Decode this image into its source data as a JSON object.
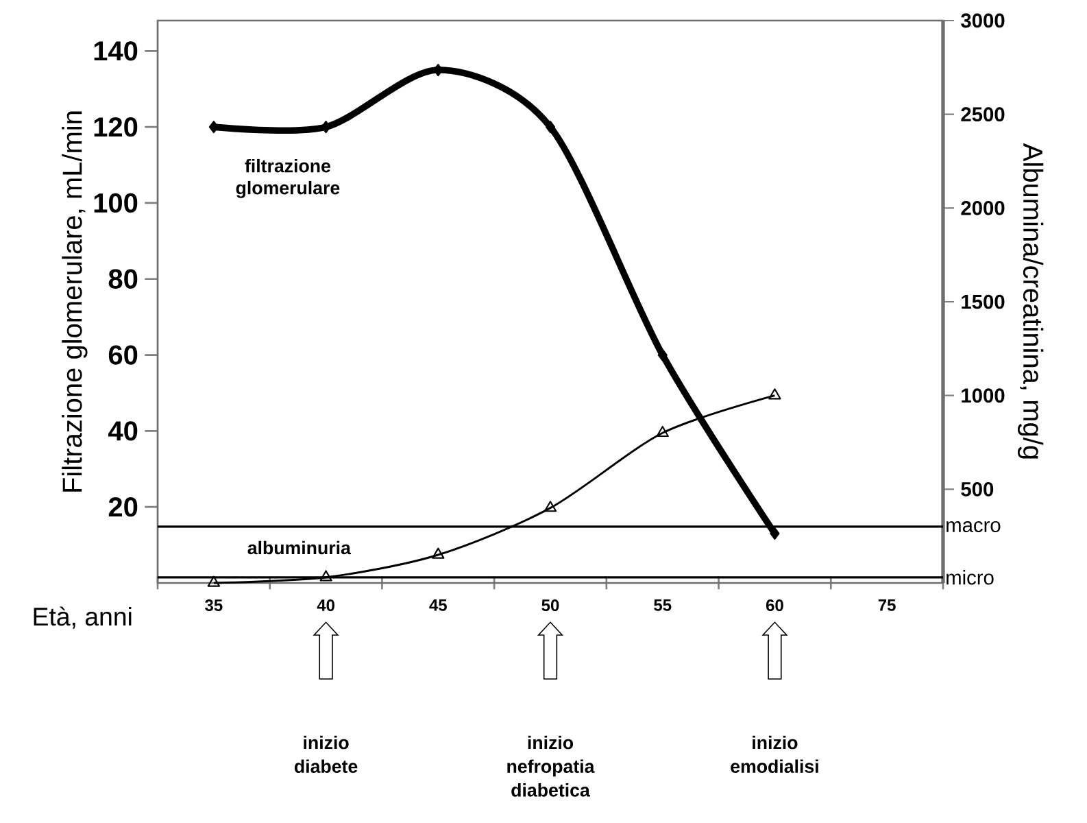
{
  "chart_data": {
    "type": "line",
    "xlabel": "Età, anni",
    "ylabel": "Filtrazione glomerulare, mL/min",
    "y2label": "Albumina/creatinina, mg/g",
    "categories": [
      "35",
      "40",
      "45",
      "50",
      "55",
      "60",
      "75"
    ],
    "series": [
      {
        "name": "filtrazione glomerulare",
        "color": "#000000",
        "marker": "diamond",
        "values": [
          120,
          120,
          135,
          120,
          60,
          13,
          null
        ]
      },
      {
        "name": "albuminuria",
        "color": "#000000",
        "marker": "triangle",
        "axis": "y2",
        "values": [
          0,
          30,
          150,
          400,
          800,
          1000,
          null
        ]
      }
    ],
    "ylim": [
      0,
      148
    ],
    "yticks": [
      20,
      40,
      60,
      80,
      100,
      120,
      140
    ],
    "y2lim": [
      0,
      3000
    ],
    "y2ticks": [
      500,
      1000,
      1500,
      2000,
      2500,
      3000
    ],
    "ref_lines": [
      {
        "axis": "y2",
        "value": 300,
        "label": "macro",
        "color": "#000000"
      },
      {
        "axis": "y2",
        "value": 30,
        "label": "micro",
        "color": "#000000"
      }
    ],
    "annotations": [
      "inizio diabete",
      "inizio nefropatia diabetica",
      "inizio emodialisi"
    ]
  }
}
